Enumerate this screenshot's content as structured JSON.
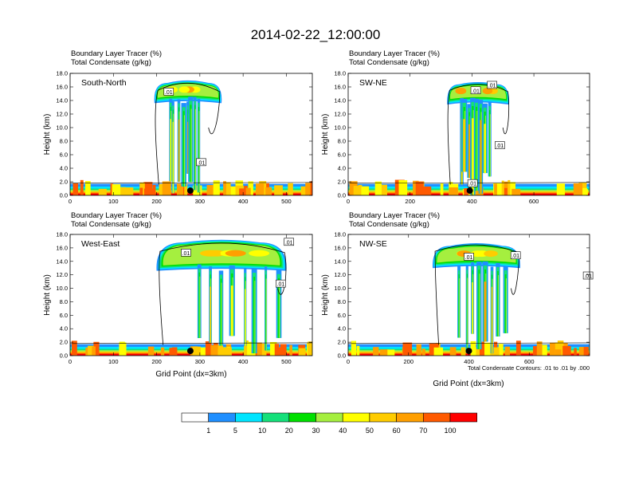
{
  "page_title": "2014-02-22_12:00:00",
  "colors": {
    "levels": [
      "#ffffff",
      "#1f8fff",
      "#00e5ff",
      "#14e07a",
      "#00e000",
      "#a5ef3f",
      "#ffff00",
      "#ffcc00",
      "#ff9f00",
      "#ff5a00",
      "#ff0000"
    ],
    "contour": "#000000"
  },
  "chart_data": [
    {
      "type": "heatmap",
      "panel": "South-North",
      "headers": [
        "Boundary Layer Tracer   (%)",
        "Total Condensate   (g/kg)"
      ],
      "xlim": [
        0,
        560
      ],
      "ylim": [
        0,
        18
      ],
      "xticks": [
        "0",
        "100",
        "200",
        "300",
        "400",
        "500"
      ],
      "xtick_values": [
        0,
        100,
        200,
        300,
        400,
        500
      ],
      "yticks": [
        "0.0",
        "2.0",
        "4.0",
        "6.0",
        "8.0",
        "10.0",
        "12.0",
        "14.0",
        "16.0",
        "18.0"
      ],
      "ylabel": "Height (km)",
      "contour_labels": [
        {
          "text": ".01",
          "x": 228,
          "y": 15.3
        },
        {
          "text": ".01",
          "x": 303,
          "y": 4.9
        }
      ],
      "marker_x": 278,
      "anvil": {
        "x0": 195,
        "x1": 350,
        "bottom": 13.6,
        "top": 16.6,
        "peak": 17.3
      },
      "core": {
        "x0": 230,
        "x1": 300
      },
      "contour_x": [
        205,
        340
      ]
    },
    {
      "type": "heatmap",
      "panel": "SW-NE",
      "headers": [
        "Boundary Layer Tracer   (%)",
        "Total Condensate   (g/kg)"
      ],
      "xlim": [
        0,
        780
      ],
      "ylim": [
        0,
        18
      ],
      "xticks": [
        "0",
        "200",
        "400",
        "600"
      ],
      "xtick_values": [
        0,
        200,
        400,
        600
      ],
      "yticks": [
        "0.0",
        "2.0",
        "4.0",
        "6.0",
        "8.0",
        "10.0",
        "12.0",
        "14.0",
        "16.0",
        "18.0"
      ],
      "ylabel": "Height (km)",
      "contour_labels": [
        {
          "text": ".01",
          "x": 412,
          "y": 15.5
        },
        {
          "text": ".01",
          "x": 465,
          "y": 16.3
        },
        {
          "text": ".01",
          "x": 490,
          "y": 7.4
        },
        {
          "text": ".01",
          "x": 402,
          "y": 1.8
        }
      ],
      "marker_x": 393,
      "anvil": {
        "x0": 320,
        "x1": 520,
        "bottom": 13.4,
        "top": 16.4,
        "peak": 17.0
      },
      "core": {
        "x0": 365,
        "x1": 455
      },
      "contour_x": [
        330,
        520
      ]
    },
    {
      "type": "heatmap",
      "panel": "West-East",
      "headers": [
        "Boundary Layer Tracer   (%)",
        "Total Condensate   (g/kg)"
      ],
      "xlim": [
        0,
        560
      ],
      "ylim": [
        0,
        18
      ],
      "xticks": [
        "0",
        "100",
        "200",
        "300",
        "400",
        "500"
      ],
      "xtick_values": [
        0,
        100,
        200,
        300,
        400,
        500
      ],
      "yticks": [
        "0.0",
        "2.0",
        "4.0",
        "6.0",
        "8.0",
        "10.0",
        "12.0",
        "14.0",
        "16.0",
        "18.0"
      ],
      "ylabel": "Height (km)",
      "xlabel": "Grid Point (dx=3km)",
      "contour_labels": [
        {
          "text": ".01",
          "x": 268,
          "y": 15.3
        },
        {
          "text": ".01",
          "x": 506,
          "y": 16.9
        },
        {
          "text": ".01",
          "x": 487,
          "y": 10.7
        }
      ],
      "marker_x": 278,
      "anvil": {
        "x0": 200,
        "x1": 500,
        "bottom": 12.6,
        "top": 16.8,
        "peak": 17.6
      },
      "core": {
        "x0": 300,
        "x1": 480
      },
      "contour_x": [
        215,
        500
      ]
    },
    {
      "type": "heatmap",
      "panel": "NW-SE",
      "headers": [
        "Boundary Layer Tracer   (%)",
        "Total Condensate   (g/kg)"
      ],
      "xlim": [
        0,
        800
      ],
      "ylim": [
        0,
        18
      ],
      "xticks": [
        "0",
        "200",
        "400",
        "600"
      ],
      "xtick_values": [
        0,
        200,
        400,
        600
      ],
      "yticks": [
        "0.0",
        "2.0",
        "4.0",
        "6.0",
        "8.0",
        "10.0",
        "12.0",
        "14.0",
        "16.0",
        "18.0"
      ],
      "ylabel": "Height (km)",
      "xlabel": "Grid Point (dx=3km)",
      "note": "Total Condensate Contours: .01 to .01 by .000",
      "contour_labels": [
        {
          "text": ".01",
          "x": 400,
          "y": 14.7
        },
        {
          "text": ".01",
          "x": 555,
          "y": 14.9
        },
        {
          "text": ".01",
          "x": 795,
          "y": 11.9
        }
      ],
      "marker_x": 400,
      "anvil": {
        "x0": 280,
        "x1": 570,
        "bottom": 13.0,
        "top": 16.3,
        "peak": 17.1
      },
      "core": {
        "x0": 370,
        "x1": 520
      },
      "contour_x": [
        300,
        560
      ]
    }
  ],
  "colorbar": {
    "labels": [
      "1",
      "5",
      "10",
      "20",
      "30",
      "40",
      "50",
      "60",
      "70",
      "100"
    ]
  }
}
